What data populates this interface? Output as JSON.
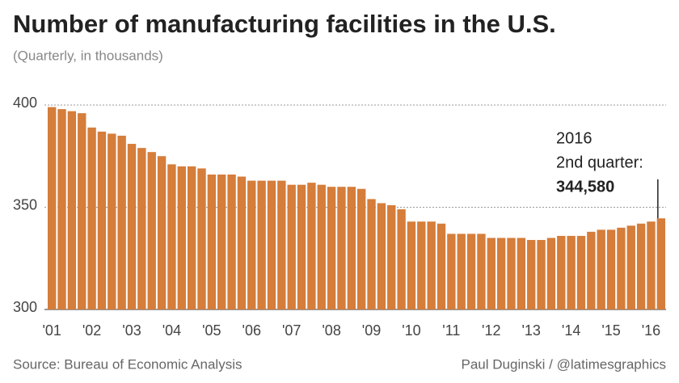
{
  "chart_data": {
    "type": "bar",
    "title": "Number of manufacturing facilities in the U.S.",
    "subtitle": "(Quarterly, in thousands)",
    "categories": [
      "'01",
      null,
      null,
      null,
      "'02",
      null,
      null,
      null,
      "'03",
      null,
      null,
      null,
      "'04",
      null,
      null,
      null,
      "'05",
      null,
      null,
      null,
      "'06",
      null,
      null,
      null,
      "'07",
      null,
      null,
      null,
      "'08",
      null,
      null,
      null,
      "'09",
      null,
      null,
      null,
      "'10",
      null,
      null,
      null,
      "'11",
      null,
      null,
      null,
      "'12",
      null,
      null,
      null,
      "'13",
      null,
      null,
      null,
      "'14",
      null,
      null,
      null,
      "'15",
      null,
      null,
      null,
      "'16",
      null
    ],
    "values": [
      399,
      398,
      397,
      396,
      389,
      387,
      386,
      385,
      381,
      379,
      377,
      375,
      371,
      370,
      370,
      369,
      366,
      366,
      366,
      365,
      363,
      363,
      363,
      363,
      361,
      361,
      362,
      361,
      360,
      360,
      360,
      359,
      354,
      352,
      351,
      349,
      343,
      343,
      343,
      342,
      337,
      337,
      337,
      337,
      335,
      335,
      335,
      335,
      334,
      334,
      335,
      336,
      336,
      336,
      338,
      339,
      339,
      340,
      341,
      342,
      343,
      344.58
    ],
    "color": "#d57d3a",
    "ylim": [
      300,
      400
    ],
    "yticks": [
      300,
      350,
      400
    ],
    "grid": true,
    "annotation": {
      "lines": [
        "2016",
        "2nd quarter:"
      ],
      "value": "344,580"
    },
    "source": "Source: Bureau of Economic Analysis",
    "credit": "Paul Duginski / @latimesgraphics"
  }
}
